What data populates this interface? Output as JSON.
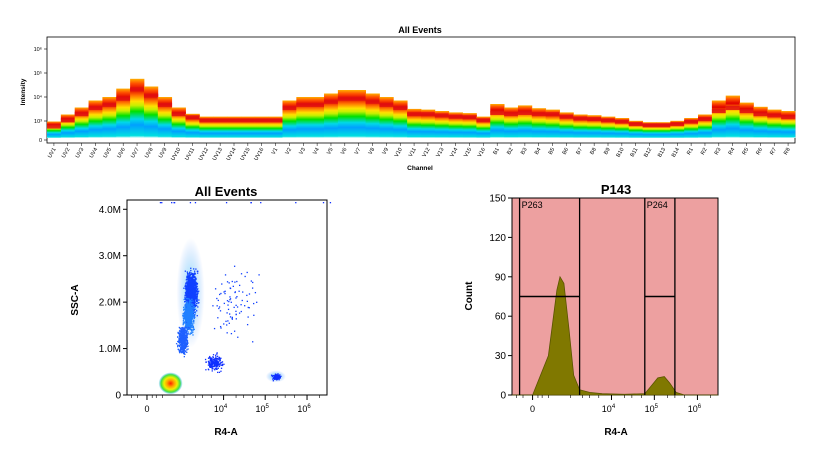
{
  "chart_data": [
    {
      "type": "heatmap",
      "title": "All Events",
      "xlabel": "Channel",
      "ylabel": "Intensity",
      "yticks": [
        "10⁶",
        "10⁵",
        "10⁴",
        "10³",
        "0"
      ],
      "channels": [
        "UV1",
        "UV2",
        "UV3",
        "UV4",
        "UV5",
        "UV6",
        "UV7",
        "UV8",
        "UV9",
        "UV10",
        "UV11",
        "UV12",
        "UV13",
        "UV14",
        "UV15",
        "UV16",
        "V1",
        "V2",
        "V3",
        "V4",
        "V5",
        "V6",
        "V7",
        "V8",
        "V9",
        "V10",
        "V11",
        "V12",
        "V13",
        "V14",
        "V15",
        "V16",
        "B1",
        "B2",
        "B3",
        "B4",
        "B5",
        "B6",
        "B7",
        "B8",
        "B9",
        "B10",
        "B11",
        "B12",
        "B13",
        "B14",
        "R1",
        "R2",
        "R3",
        "R4",
        "R5",
        "R6",
        "R7",
        "R8"
      ],
      "median_level": [
        0.2,
        0.3,
        0.4,
        0.5,
        0.55,
        0.65,
        0.8,
        0.7,
        0.55,
        0.4,
        0.35,
        0.3,
        0.3,
        0.3,
        0.3,
        0.3,
        0.3,
        0.5,
        0.55,
        0.55,
        0.6,
        0.65,
        0.65,
        0.6,
        0.55,
        0.5,
        0.4,
        0.4,
        0.38,
        0.36,
        0.35,
        0.3,
        0.42,
        0.4,
        0.42,
        0.4,
        0.4,
        0.36,
        0.33,
        0.32,
        0.3,
        0.28,
        0.24,
        0.22,
        0.22,
        0.24,
        0.28,
        0.32,
        0.45,
        0.5,
        0.45,
        0.4,
        0.38,
        0.35
      ],
      "top_level": [
        0.25,
        0.35,
        0.45,
        0.55,
        0.6,
        0.72,
        0.86,
        0.75,
        0.6,
        0.45,
        0.36,
        0.32,
        0.32,
        0.32,
        0.32,
        0.32,
        0.32,
        0.55,
        0.6,
        0.6,
        0.65,
        0.7,
        0.7,
        0.65,
        0.6,
        0.55,
        0.43,
        0.42,
        0.4,
        0.38,
        0.37,
        0.32,
        0.5,
        0.45,
        0.48,
        0.44,
        0.42,
        0.38,
        0.35,
        0.34,
        0.32,
        0.3,
        0.26,
        0.24,
        0.24,
        0.26,
        0.3,
        0.35,
        0.55,
        0.62,
        0.52,
        0.46,
        0.42,
        0.4
      ],
      "colorscale": [
        "#0000d0",
        "#00a0ff",
        "#00e0e0",
        "#00e000",
        "#c8f000",
        "#ffe000",
        "#ff7000",
        "#e00000"
      ]
    },
    {
      "type": "scatter",
      "title": "All Events",
      "xlabel": "R4-A",
      "ylabel": "SSC-A",
      "yticks": [
        {
          "label": "0",
          "v": 0
        },
        {
          "label": "1.0M",
          "v": 1000000
        },
        {
          "label": "2.0M",
          "v": 2000000
        },
        {
          "label": "3.0M",
          "v": 3000000
        },
        {
          "label": "4.0M",
          "v": 4000000
        }
      ],
      "ylim": [
        0,
        4200000
      ],
      "xscale": "biexponential",
      "xticks": [
        {
          "label": "0",
          "exp": null,
          "v": 0
        },
        {
          "label": "10",
          "exp": "4",
          "v": 10000
        },
        {
          "label": "10",
          "exp": "5",
          "v": 100000
        },
        {
          "label": "10",
          "exp": "6",
          "v": 1000000
        }
      ],
      "xlim": [
        -300,
        3000000
      ],
      "populations": [
        {
          "name": "",
          "x": 400,
          "y": 250000,
          "density": "high"
        },
        {
          "name": "",
          "x": 1500,
          "y": 2200000,
          "density": "medium"
        },
        {
          "name": "",
          "x": 5000,
          "y": 800000,
          "density": "low"
        },
        {
          "name": "",
          "x": 180000,
          "y": 400000,
          "density": "low"
        }
      ]
    },
    {
      "type": "area",
      "title": "P143",
      "xlabel": "R4-A",
      "ylabel": "Count",
      "yticks": [
        {
          "label": "0",
          "v": 0
        },
        {
          "label": "30",
          "v": 30
        },
        {
          "label": "60",
          "v": 60
        },
        {
          "label": "90",
          "v": 90
        },
        {
          "label": "120",
          "v": 120
        },
        {
          "label": "150",
          "v": 150
        }
      ],
      "ylim": [
        0,
        150
      ],
      "xscale": "biexponential",
      "xticks": [
        {
          "label": "0",
          "exp": null,
          "v": 0
        },
        {
          "label": "10",
          "exp": "4",
          "v": 10000
        },
        {
          "label": "10",
          "exp": "5",
          "v": 100000
        },
        {
          "label": "10",
          "exp": "6",
          "v": 1000000
        }
      ],
      "xlim": [
        -300,
        3000000
      ],
      "histogram": [
        {
          "x": -300,
          "y": 0
        },
        {
          "x": 0,
          "y": 0
        },
        {
          "x": 200,
          "y": 30
        },
        {
          "x": 400,
          "y": 80
        },
        {
          "x": 500,
          "y": 90
        },
        {
          "x": 650,
          "y": 85
        },
        {
          "x": 900,
          "y": 50
        },
        {
          "x": 1200,
          "y": 15
        },
        {
          "x": 1700,
          "y": 4
        },
        {
          "x": 3000,
          "y": 2
        },
        {
          "x": 6000,
          "y": 1
        },
        {
          "x": 20000,
          "y": 0.5
        },
        {
          "x": 60000,
          "y": 1
        },
        {
          "x": 90000,
          "y": 8
        },
        {
          "x": 120000,
          "y": 13
        },
        {
          "x": 170000,
          "y": 14
        },
        {
          "x": 230000,
          "y": 9
        },
        {
          "x": 320000,
          "y": 2
        },
        {
          "x": 500000,
          "y": 0
        },
        {
          "x": 3000000,
          "y": 0
        }
      ],
      "gates": [
        {
          "name": "P263",
          "x1": -150,
          "x2": 1700,
          "y": 75
        },
        {
          "name": "P264",
          "x1": 60000,
          "x2": 300000,
          "y": 75
        }
      ],
      "background_color": "#eda0a0",
      "fill_color": "#807800"
    }
  ]
}
